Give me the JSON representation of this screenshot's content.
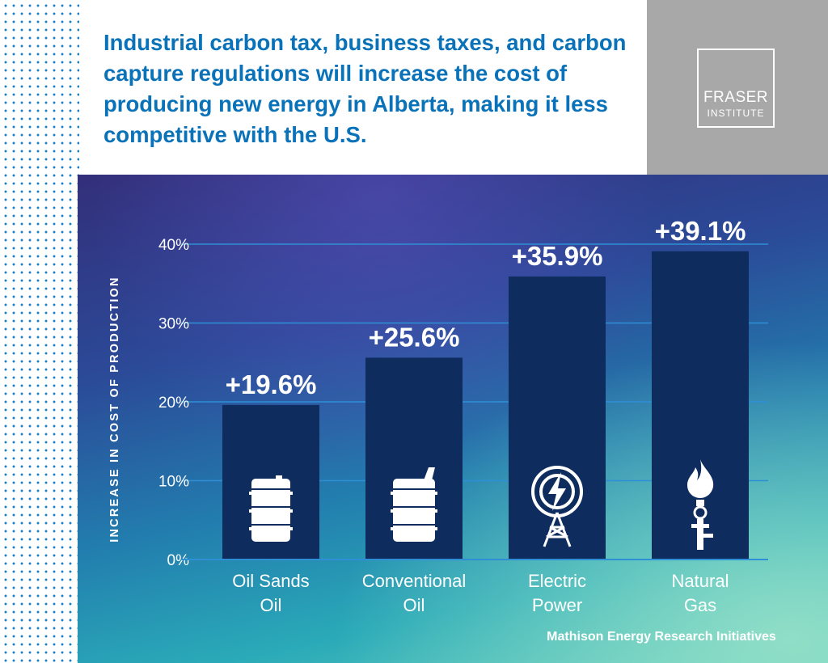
{
  "headline": "Industrial carbon tax, business taxes, and carbon capture regulations will increase the cost of producing new energy in Alberta, making it less competitive with the U.S.",
  "logo": {
    "line1": "FRASER",
    "line2": "INSTITUTE"
  },
  "source": "Mathison Energy Research Initiatives",
  "colors": {
    "headline": "#0a72b8",
    "bar": "#0e2c5e",
    "brand_box": "#a8a8a8",
    "dots": "#1a7fc4"
  },
  "chart_data": {
    "type": "bar",
    "title": "",
    "xlabel": "",
    "ylabel": "INCREASE IN COST OF PRODUCTION",
    "ylim": [
      0,
      40
    ],
    "yticks": [
      "0%",
      "10%",
      "20%",
      "30%",
      "40%"
    ],
    "grid": true,
    "categories": [
      {
        "line1": "Oil Sands",
        "line2": "Oil",
        "icon": "oil-barrel-icon"
      },
      {
        "line1": "Conventional",
        "line2": "Oil",
        "icon": "fuel-can-icon"
      },
      {
        "line1": "Electric",
        "line2": "Power",
        "icon": "electric-tower-icon"
      },
      {
        "line1": "Natural",
        "line2": "Gas",
        "icon": "gas-flame-icon"
      }
    ],
    "values": [
      19.6,
      25.6,
      35.9,
      39.1
    ],
    "data_labels": [
      "+19.6%",
      "+25.6%",
      "+35.9%",
      "+39.1%"
    ]
  }
}
